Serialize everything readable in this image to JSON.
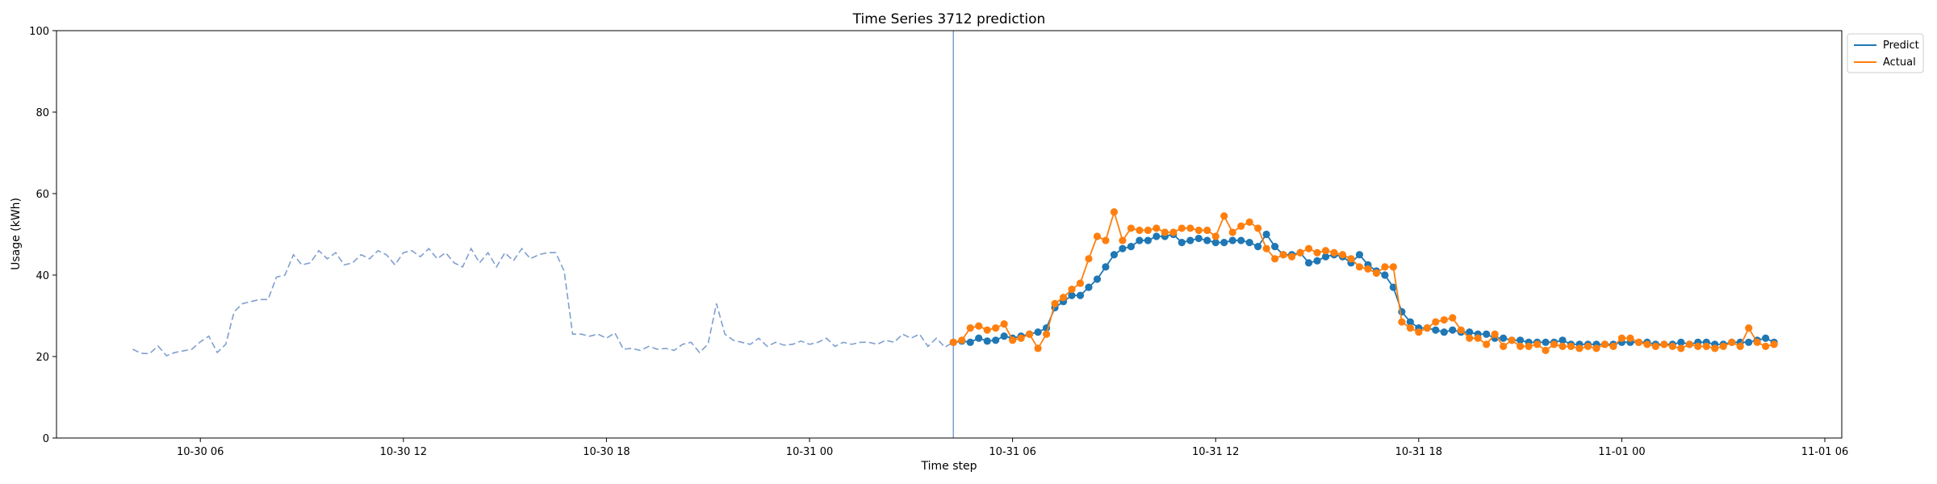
{
  "chart_data": {
    "type": "line",
    "title": "Time Series 3712 prediction",
    "xlabel": "Time step",
    "ylabel": "Usage (kWh)",
    "ylim": [
      0,
      100
    ],
    "yticks": [
      0,
      20,
      40,
      60,
      80,
      100
    ],
    "xlim": [
      "2020-10-30 01:45",
      "2020-11-01 06:30"
    ],
    "xticks": [
      {
        "t": "2020-10-30 06:00",
        "label": "10-30 06"
      },
      {
        "t": "2020-10-30 12:00",
        "label": "10-30 12"
      },
      {
        "t": "2020-10-30 18:00",
        "label": "10-30 18"
      },
      {
        "t": "2020-10-31 00:00",
        "label": "10-31 00"
      },
      {
        "t": "2020-10-31 06:00",
        "label": "10-31 06"
      },
      {
        "t": "2020-10-31 12:00",
        "label": "10-31 12"
      },
      {
        "t": "2020-10-31 18:00",
        "label": "10-31 18"
      },
      {
        "t": "2020-11-01 00:00",
        "label": "11-01 00"
      },
      {
        "t": "2020-11-01 06:00",
        "label": "11-01 06"
      }
    ],
    "grid": false,
    "legend_position": "outside top-right",
    "split_time": "2020-10-31 04:15",
    "colors": {
      "history": "#7f9fcf",
      "predict": "#1f77b4",
      "actual": "#ff7f0e",
      "split_line": "#7f9fcf"
    },
    "history": {
      "start": "2020-10-30 04:00",
      "step_minutes": 15,
      "values": [
        21.8,
        20.8,
        20.7,
        22.6,
        20.2,
        21.0,
        21.4,
        21.8,
        23.6,
        25.0,
        21.0,
        23.0,
        31.0,
        33.0,
        33.5,
        34.0,
        34.0,
        39.5,
        40.0,
        45.0,
        42.5,
        43.0,
        46.0,
        44.0,
        45.5,
        42.5,
        43.0,
        45.0,
        44.0,
        46.0,
        45.0,
        42.5,
        45.5,
        46.0,
        44.5,
        46.5,
        44.0,
        45.5,
        43.0,
        42.0,
        46.5,
        43.0,
        45.5,
        42.0,
        45.5,
        43.5,
        46.5,
        44.0,
        45.0,
        45.5,
        45.5,
        41.0,
        25.5,
        25.5,
        25.0,
        25.5,
        24.5,
        25.8,
        21.8,
        22.0,
        21.5,
        22.5,
        21.8,
        22.0,
        21.5,
        23.0,
        23.5,
        21.0,
        23.0,
        33.0,
        25.5,
        24.0,
        23.5,
        23.0,
        24.5,
        22.5,
        23.5,
        22.8,
        23.0,
        23.8,
        23.0,
        23.5,
        24.5,
        22.5,
        23.5,
        23.0,
        23.5,
        23.5,
        23.0,
        24.0,
        23.5,
        25.5,
        24.5,
        25.5,
        22.5,
        24.5,
        22.3,
        23.5
      ]
    },
    "x_start": "2020-10-31 04:15",
    "x_step_minutes": 15,
    "series": [
      {
        "name": "Predict",
        "values": [
          23.5,
          23.8,
          23.5,
          24.5,
          23.8,
          24.0,
          25.0,
          24.5,
          25.0,
          25.5,
          26.0,
          27.0,
          32.0,
          33.5,
          35.0,
          35.0,
          37.0,
          39.0,
          42.0,
          45.0,
          46.5,
          47.0,
          48.5,
          48.5,
          49.5,
          49.5,
          50.0,
          48.0,
          48.5,
          49.0,
          48.5,
          48.0,
          48.0,
          48.5,
          48.5,
          48.0,
          47.0,
          50.0,
          47.0,
          45.0,
          45.0,
          45.5,
          43.0,
          43.5,
          44.5,
          45.0,
          44.5,
          43.0,
          45.0,
          42.5,
          41.0,
          40.0,
          37.0,
          31.0,
          28.5,
          27.0,
          27.0,
          26.5,
          26.0,
          26.5,
          26.0,
          26.0,
          25.5,
          25.5,
          24.5,
          24.5,
          24.0,
          24.0,
          23.5,
          23.5,
          23.5,
          23.5,
          24.0,
          23.0,
          23.0,
          23.0,
          23.0,
          23.0,
          23.0,
          23.5,
          23.5,
          23.5,
          23.5,
          23.0,
          23.0,
          23.0,
          23.5,
          23.0,
          23.5,
          23.5,
          23.0,
          23.0,
          23.5,
          23.5,
          23.5,
          24.0,
          24.5,
          23.5
        ]
      },
      {
        "name": "Actual",
        "values": [
          23.5,
          24.0,
          27.0,
          27.5,
          26.5,
          27.0,
          28.0,
          24.0,
          24.5,
          25.5,
          22.0,
          25.5,
          33.0,
          34.5,
          36.5,
          38.0,
          44.0,
          49.5,
          48.5,
          55.5,
          48.5,
          51.5,
          51.0,
          51.0,
          51.5,
          50.5,
          50.5,
          51.5,
          51.5,
          51.0,
          51.0,
          49.5,
          54.5,
          50.5,
          52.0,
          53.0,
          51.5,
          46.5,
          44.0,
          45.0,
          44.5,
          45.5,
          46.5,
          45.5,
          46.0,
          45.5,
          45.0,
          44.0,
          42.0,
          41.5,
          40.5,
          42.0,
          42.0,
          28.5,
          27.0,
          26.0,
          27.0,
          28.5,
          29.0,
          29.5,
          26.5,
          24.5,
          24.5,
          23.0,
          25.5,
          22.5,
          24.0,
          22.5,
          22.5,
          23.0,
          21.5,
          23.0,
          22.5,
          22.5,
          22.0,
          22.5,
          22.0,
          23.0,
          22.5,
          24.5,
          24.5,
          23.5,
          23.0,
          22.5,
          23.0,
          22.5,
          22.0,
          23.0,
          22.5,
          22.5,
          22.0,
          22.5,
          23.5,
          22.5,
          27.0,
          23.5,
          22.5,
          23.0
        ]
      }
    ]
  }
}
